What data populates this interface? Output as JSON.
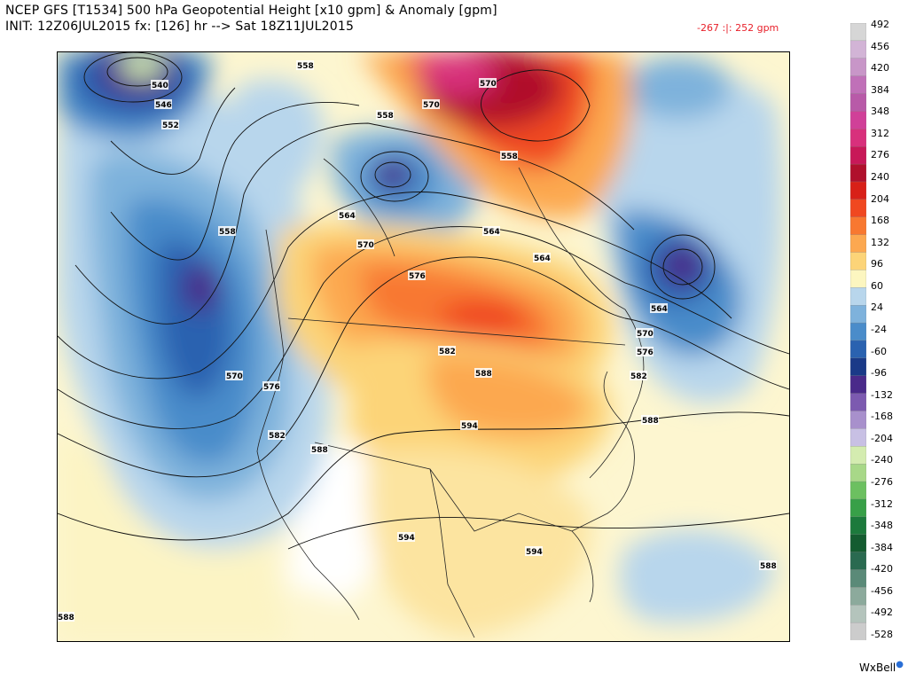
{
  "header": {
    "line1": "NCEP GFS [T1534] 500 hPa Geopotential Height [x10 gpm] & Anomaly [gpm]",
    "line2": "INIT: 12Z06JUL2015 fx: [126] hr --> Sat 18Z11JUL2015",
    "min_anomaly": "-267",
    "minmax_separator": ":|:",
    "max_anomaly": "252 gpm"
  },
  "colorbar": {
    "labels": [
      "492",
      "456",
      "420",
      "384",
      "348",
      "312",
      "276",
      "240",
      "204",
      "168",
      "132",
      "96",
      "60",
      "24",
      "-24",
      "-60",
      "-96",
      "-132",
      "-168",
      "-204",
      "-240",
      "-276",
      "-312",
      "-348",
      "-384",
      "-420",
      "-456",
      "-492",
      "-528"
    ],
    "colors": [
      "#d6d6d6",
      "#d2b4d6",
      "#c896c8",
      "#c070b8",
      "#b85aa8",
      "#d04098",
      "#d8307c",
      "#c81858",
      "#b0102c",
      "#d82018",
      "#f04820",
      "#f87830",
      "#fca850",
      "#fcd478",
      "#fcf6c0",
      "#b8d6ec",
      "#7eb2dc",
      "#4a8cca",
      "#2a62b0",
      "#1a3a88",
      "#4a2a8a",
      "#7c5ab0",
      "#a890cc",
      "#c8c0e4",
      "#d4ecb0",
      "#a8d888",
      "#6cc060",
      "#38a048",
      "#1c7a3c",
      "#145c30",
      "#2a6a50",
      "#5a8a78",
      "#8caa9c",
      "#b4c4bc",
      "#cccccc"
    ]
  },
  "contour_labels": [
    "540",
    "546",
    "552",
    "558",
    "558",
    "558",
    "564",
    "564",
    "570",
    "570",
    "570",
    "576",
    "576",
    "582",
    "588",
    "594",
    "594",
    "594",
    "588",
    "582",
    "576",
    "570",
    "564",
    "558",
    "564",
    "582",
    "588",
    "588",
    "570",
    "588"
  ],
  "brand": "WxBell",
  "map": {
    "type": "500 hPa height anomaly map",
    "region": "North America",
    "negative_anomaly_color": "#2a62b0",
    "positive_anomaly_color": "#f87830"
  }
}
